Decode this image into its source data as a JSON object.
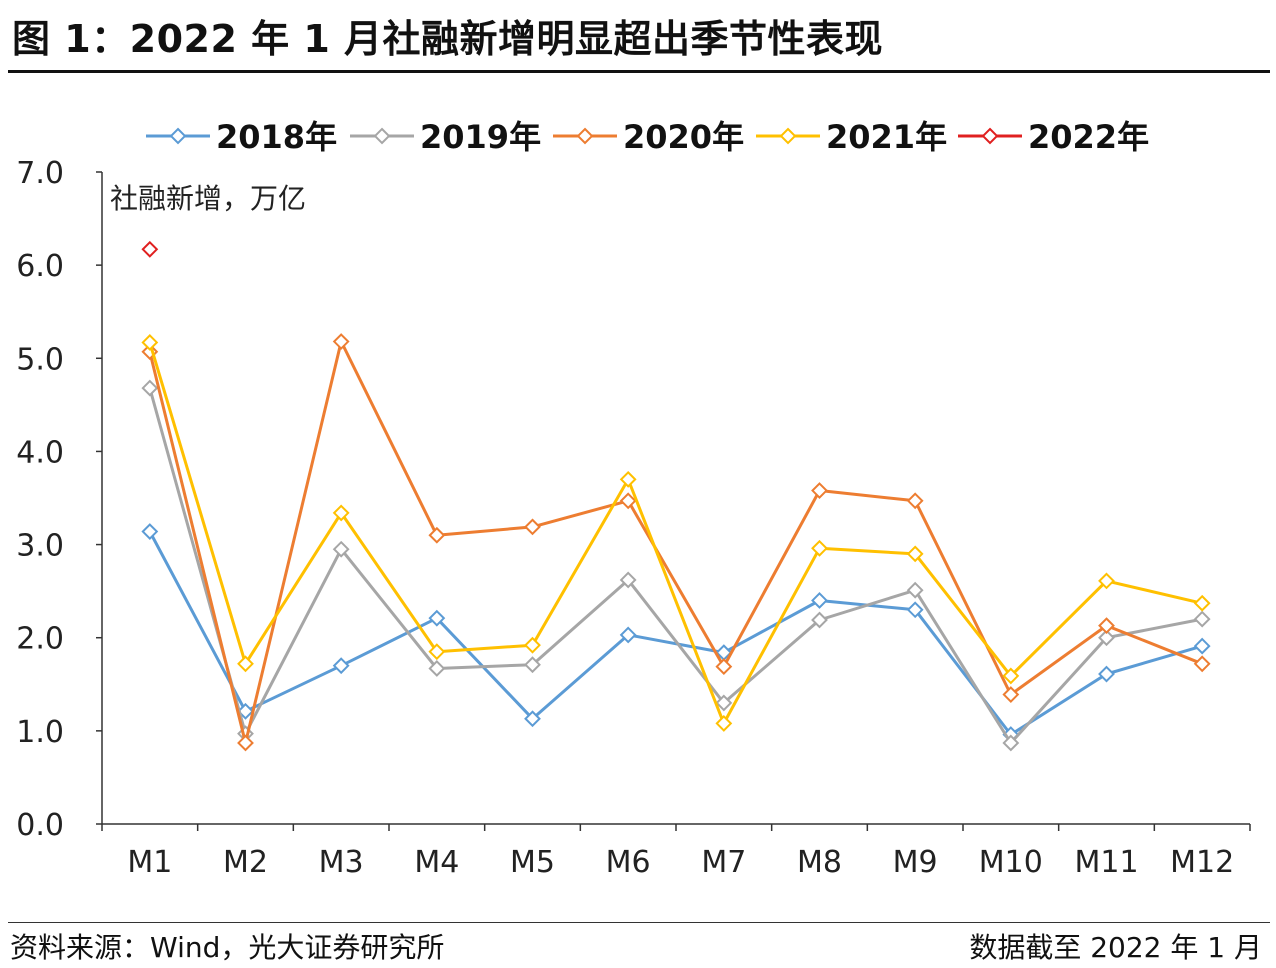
{
  "title": "图 1：2022 年 1 月社融新增明显超出季节性表现",
  "source": "资料来源：Wind，光大证券研究所",
  "cutoff": "数据截至 2022 年 1 月",
  "chart_data": {
    "type": "line",
    "title": "图 1：2022 年 1 月社融新增明显超出季节性表现",
    "ylabel": "社融新增，万亿",
    "xlabel": "",
    "ylim": [
      0,
      7
    ],
    "ytick_step": 1,
    "ytick_labels": [
      "0.0",
      "1.0",
      "2.0",
      "3.0",
      "4.0",
      "5.0",
      "6.0",
      "7.0"
    ],
    "categories": [
      "M1",
      "M2",
      "M3",
      "M4",
      "M5",
      "M6",
      "M7",
      "M8",
      "M9",
      "M10",
      "M11",
      "M12"
    ],
    "legend_position": "top",
    "series": [
      {
        "name": "2018年",
        "color": "#5b9bd5",
        "values": [
          3.14,
          1.21,
          1.7,
          2.21,
          1.13,
          2.03,
          1.84,
          2.4,
          2.3,
          0.96,
          1.61,
          1.91
        ]
      },
      {
        "name": "2019年",
        "color": "#a6a6a6",
        "values": [
          4.68,
          0.97,
          2.95,
          1.67,
          1.71,
          2.62,
          1.3,
          2.19,
          2.51,
          0.87,
          2.0,
          2.2
        ]
      },
      {
        "name": "2020年",
        "color": "#ed7d31",
        "values": [
          5.07,
          0.87,
          5.18,
          3.1,
          3.19,
          3.47,
          1.69,
          3.58,
          3.47,
          1.39,
          2.13,
          1.72
        ]
      },
      {
        "name": "2021年",
        "color": "#ffc000",
        "values": [
          5.17,
          1.72,
          3.34,
          1.85,
          1.92,
          3.7,
          1.08,
          2.96,
          2.9,
          1.59,
          2.61,
          2.37
        ]
      },
      {
        "name": "2022年",
        "color": "#e02020",
        "values": [
          6.17,
          null,
          null,
          null,
          null,
          null,
          null,
          null,
          null,
          null,
          null,
          null
        ]
      }
    ]
  }
}
